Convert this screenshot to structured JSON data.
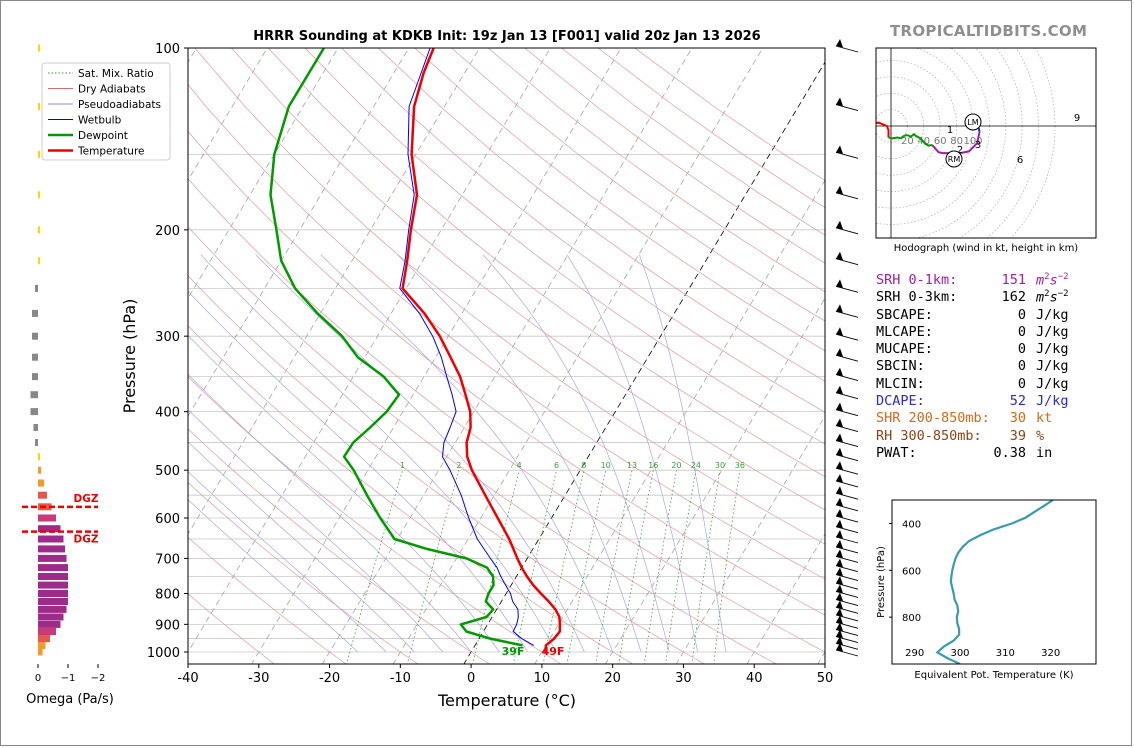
{
  "site": "TROPICALTIDBITS.COM",
  "chart_data": [
    {
      "type": "line",
      "subtype": "skew-t",
      "title": "HRRR Sounding at KDKB Init: 19z Jan 13 [F001] valid 20z Jan 13 2026",
      "xlabel": "Temperature (°C)",
      "ylabel": "Pressure (hPa)",
      "xlim": [
        -40,
        50
      ],
      "ylim": [
        1050,
        100
      ],
      "yscale": "log",
      "xticks": [
        -40,
        -30,
        -20,
        -10,
        0,
        10,
        20,
        30,
        40,
        50
      ],
      "yticks": [
        100,
        200,
        300,
        400,
        500,
        600,
        700,
        800,
        900,
        1000
      ],
      "grid": true,
      "legend_position": "top-left",
      "legend": [
        {
          "name": "Sat. Mix. Ratio",
          "color": "#2ca02c",
          "style": "dotted"
        },
        {
          "name": "Dry Adiabats",
          "color": "#d96a6a",
          "style": "solid"
        },
        {
          "name": "Pseudoadiabats",
          "color": "#8888c8",
          "style": "solid"
        },
        {
          "name": "Wetbulb",
          "color": "#0000ee",
          "style": "solid"
        },
        {
          "name": "Dewpoint",
          "color": "#009900",
          "style": "solid"
        },
        {
          "name": "Temperature",
          "color": "#ee0000",
          "style": "solid"
        }
      ],
      "mixing_ratio_labels": [
        "1",
        "2",
        "4",
        "6",
        "8",
        "10",
        "13",
        "16",
        "20",
        "24",
        "30",
        "36"
      ],
      "surface_labels": {
        "dewpoint": "39F",
        "temperature": "49F"
      },
      "series": [
        {
          "name": "Temperature",
          "color": "#ee0000",
          "points": [
            [
              1000,
              10.5
            ],
            [
              975,
              10.0
            ],
            [
              950,
              10.6
            ],
            [
              925,
              10.8
            ],
            [
              900,
              10.2
            ],
            [
              875,
              9.5
            ],
            [
              850,
              8.3
            ],
            [
              825,
              6.7
            ],
            [
              800,
              4.9
            ],
            [
              775,
              3.1
            ],
            [
              750,
              1.5
            ],
            [
              725,
              0.0
            ],
            [
              700,
              -1.4
            ],
            [
              650,
              -4.2
            ],
            [
              600,
              -7.6
            ],
            [
              550,
              -11.3
            ],
            [
              500,
              -15.3
            ],
            [
              475,
              -17.1
            ],
            [
              450,
              -18.4
            ],
            [
              425,
              -19.1
            ],
            [
              400,
              -20.5
            ],
            [
              375,
              -22.6
            ],
            [
              350,
              -24.9
            ],
            [
              325,
              -27.9
            ],
            [
              300,
              -31.2
            ],
            [
              275,
              -35.3
            ],
            [
              250,
              -40.5
            ],
            [
              225,
              -42.2
            ],
            [
              200,
              -44.3
            ],
            [
              175,
              -46.4
            ],
            [
              150,
              -50.6
            ],
            [
              125,
              -54.3
            ],
            [
              110,
              -55.8
            ],
            [
              100,
              -56.5
            ]
          ]
        },
        {
          "name": "Dewpoint",
          "color": "#009900",
          "points": [
            [
              975,
              6.7
            ],
            [
              950,
              1.5
            ],
            [
              925,
              -2.4
            ],
            [
              900,
              -3.8
            ],
            [
              875,
              -0.8
            ],
            [
              850,
              -0.5
            ],
            [
              825,
              -2.2
            ],
            [
              800,
              -2.5
            ],
            [
              775,
              -2.5
            ],
            [
              750,
              -3.3
            ],
            [
              725,
              -4.9
            ],
            [
              700,
              -8.6
            ],
            [
              675,
              -15.0
            ],
            [
              650,
              -20.4
            ],
            [
              600,
              -24.2
            ],
            [
              550,
              -28.0
            ],
            [
              500,
              -32.0
            ],
            [
              475,
              -34.5
            ],
            [
              450,
              -34.4
            ],
            [
              425,
              -33.3
            ],
            [
              400,
              -32.3
            ],
            [
              375,
              -32.0
            ],
            [
              350,
              -35.7
            ],
            [
              325,
              -41.0
            ],
            [
              300,
              -45.0
            ],
            [
              275,
              -50.4
            ],
            [
              250,
              -55.7
            ],
            [
              225,
              -60.0
            ],
            [
              200,
              -63.3
            ],
            [
              175,
              -67.1
            ],
            [
              150,
              -70.0
            ],
            [
              125,
              -72.0
            ],
            [
              100,
              -72.0
            ]
          ]
        },
        {
          "name": "Wetbulb",
          "color": "#0000ee",
          "points": [
            [
              975,
              8.3
            ],
            [
              950,
              6.0
            ],
            [
              925,
              4.2
            ],
            [
              900,
              4.1
            ],
            [
              875,
              3.7
            ],
            [
              850,
              3.0
            ],
            [
              825,
              1.6
            ],
            [
              800,
              0.6
            ],
            [
              775,
              -0.8
            ],
            [
              750,
              -2.2
            ],
            [
              725,
              -3.5
            ],
            [
              700,
              -5.2
            ],
            [
              650,
              -8.7
            ],
            [
              600,
              -11.7
            ],
            [
              550,
              -14.7
            ],
            [
              500,
              -18.4
            ],
            [
              475,
              -20.6
            ],
            [
              450,
              -21.6
            ],
            [
              425,
              -22.0
            ],
            [
              400,
              -22.5
            ],
            [
              375,
              -24.5
            ],
            [
              350,
              -26.8
            ],
            [
              325,
              -29.2
            ],
            [
              300,
              -32.2
            ],
            [
              275,
              -36.0
            ],
            [
              250,
              -40.9
            ],
            [
              225,
              -42.5
            ],
            [
              200,
              -44.6
            ],
            [
              175,
              -46.8
            ],
            [
              150,
              -51.1
            ],
            [
              125,
              -55.0
            ],
            [
              100,
              -57.0
            ]
          ]
        }
      ]
    },
    {
      "type": "bar",
      "subtype": "horizontal",
      "xlabel": "Omega (Pa/s)",
      "xticks": [
        "0",
        "−1",
        "−2"
      ],
      "annotations": [
        "DGZ",
        "DGZ"
      ],
      "levels": [
        1000,
        975,
        950,
        925,
        900,
        875,
        850,
        825,
        800,
        775,
        750,
        725,
        700,
        675,
        650,
        625,
        600,
        575,
        550,
        525,
        500,
        475,
        450,
        425,
        400,
        375,
        350,
        325,
        300,
        275,
        250,
        225,
        200,
        175,
        150,
        125,
        100
      ],
      "values": [
        -0.15,
        -0.25,
        -0.4,
        -0.6,
        -0.75,
        -0.85,
        -0.95,
        -1.0,
        -1.0,
        -1.0,
        -1.0,
        -1.0,
        -0.95,
        -0.9,
        -0.85,
        -0.75,
        -0.6,
        -0.45,
        -0.3,
        -0.2,
        -0.1,
        0.0,
        0.1,
        0.15,
        0.25,
        0.25,
        0.2,
        0.2,
        0.2,
        0.2,
        0.1,
        0.0,
        0.0,
        0.0,
        0.0,
        0.0,
        0.0
      ]
    },
    {
      "type": "line",
      "subtype": "hodograph",
      "caption": "Hodograph (wind in kt, height in km)",
      "ring_labels": [
        "20",
        "40",
        "60",
        "80",
        "100"
      ],
      "height_labels": [
        "1",
        "2",
        "3",
        "6",
        "9"
      ],
      "markers": [
        "LM",
        "RM"
      ],
      "points": [
        [
          -30,
          3
        ],
        [
          -15,
          4
        ],
        [
          -5,
          0
        ],
        [
          -3,
          -5
        ],
        [
          -3,
          -14
        ],
        [
          2,
          -15
        ],
        [
          8,
          -14
        ],
        [
          12,
          -15
        ],
        [
          16,
          -12
        ],
        [
          20,
          -11
        ],
        [
          24,
          -13
        ],
        [
          28,
          -10
        ],
        [
          30,
          -12
        ],
        [
          36,
          -15
        ],
        [
          42,
          -22
        ],
        [
          46,
          -24
        ],
        [
          50,
          -23
        ],
        [
          58,
          -32
        ],
        [
          63,
          -33
        ],
        [
          72,
          -33
        ],
        [
          84,
          -33
        ],
        [
          95,
          -31
        ],
        [
          105,
          -21
        ],
        [
          108,
          -7
        ],
        [
          106,
          1
        ],
        [
          102,
          4
        ],
        [
          97,
          4
        ],
        [
          90,
          2
        ]
      ]
    },
    {
      "type": "line",
      "xlabel": "Equivalent Pot. Temperature (K)",
      "ylabel": "Pressure (hPa)",
      "xlim": [
        285,
        330
      ],
      "ylim": [
        1000,
        300
      ],
      "xticks": [
        290,
        300,
        310,
        320
      ],
      "yticks": [
        400,
        600,
        800
      ],
      "series": [
        {
          "name": "Equivalent Pot. Temperature",
          "color": "#3a9ab0",
          "points": [
            [
              1000,
              300.0
            ],
            [
              975,
              297.2
            ],
            [
              950,
              295.0
            ],
            [
              925,
              296.5
            ],
            [
              900,
              298.6
            ],
            [
              875,
              299.8
            ],
            [
              850,
              299.8
            ],
            [
              825,
              299.4
            ],
            [
              800,
              299.3
            ],
            [
              775,
              299.6
            ],
            [
              750,
              299.4
            ],
            [
              725,
              298.8
            ],
            [
              700,
              298.6
            ],
            [
              675,
              298.3
            ],
            [
              650,
              298.0
            ],
            [
              625,
              298.1
            ],
            [
              600,
              298.3
            ],
            [
              575,
              298.6
            ],
            [
              550,
              299.0
            ],
            [
              525,
              299.6
            ],
            [
              500,
              300.6
            ],
            [
              475,
              302.0
            ],
            [
              450,
              304.5
            ],
            [
              425,
              307.5
            ],
            [
              400,
              311.5
            ],
            [
              375,
              314.5
            ],
            [
              350,
              316.5
            ],
            [
              325,
              318.5
            ],
            [
              300,
              320.5
            ]
          ]
        }
      ]
    }
  ],
  "stats": [
    {
      "label": "SRH 0-1km:",
      "value": "151",
      "unit": "m",
      "unit_sup_base": "2",
      "unit_s": "s",
      "unit_sup_exp": "−2",
      "color": "#a020a0"
    },
    {
      "label": "SRH 0-3km:",
      "value": "162",
      "unit": "m",
      "unit_sup_base": "2",
      "unit_s": "s",
      "unit_sup_exp": "−2",
      "color": "#000000"
    },
    {
      "label": "SBCAPE:",
      "value": "0",
      "unit": "J/kg",
      "color": "#000000"
    },
    {
      "label": "MLCAPE:",
      "value": "0",
      "unit": "J/kg",
      "color": "#000000"
    },
    {
      "label": "MUCAPE:",
      "value": "0",
      "unit": "J/kg",
      "color": "#000000"
    },
    {
      "label": "SBCIN:",
      "value": "0",
      "unit": "J/kg",
      "color": "#000000"
    },
    {
      "label": "MLCIN:",
      "value": "0",
      "unit": "J/kg",
      "color": "#000000"
    },
    {
      "label": "DCAPE:",
      "value": "52",
      "unit": "J/kg",
      "color": "#2a2ad0"
    },
    {
      "label": "SHR 200-850mb:",
      "value": "30",
      "unit": "kt",
      "color": "#d2691e"
    },
    {
      "label": "RH 300-850mb:",
      "value": "39",
      "unit": "%",
      "color": "#8b4513"
    },
    {
      "label": "PWAT:",
      "value": "0.38",
      "unit": "in",
      "color": "#000000"
    }
  ]
}
